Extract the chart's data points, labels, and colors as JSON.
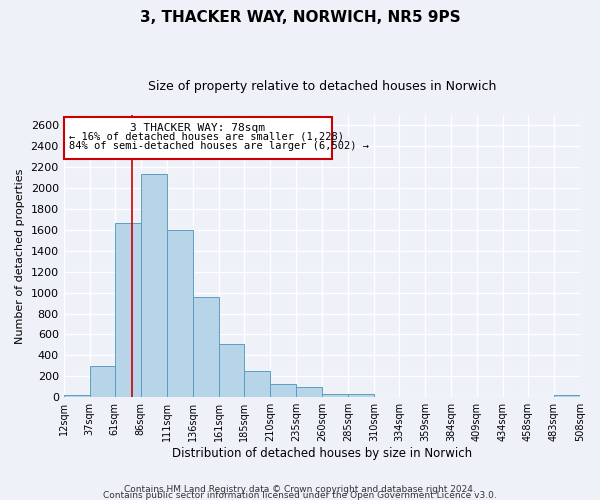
{
  "title_line1": "3, THACKER WAY, NORWICH, NR5 9PS",
  "title_line2": "Size of property relative to detached houses in Norwich",
  "xlabel": "Distribution of detached houses by size in Norwich",
  "ylabel": "Number of detached properties",
  "bar_edges": [
    12,
    37,
    61,
    86,
    111,
    136,
    161,
    185,
    210,
    235,
    260,
    285,
    310,
    334,
    359,
    384,
    409,
    434,
    458,
    483,
    508
  ],
  "bar_heights": [
    25,
    300,
    1670,
    2140,
    1600,
    960,
    505,
    250,
    130,
    100,
    30,
    30,
    5,
    5,
    5,
    5,
    5,
    5,
    5,
    25
  ],
  "bar_color": "#b8d4e8",
  "bar_edgecolor": "#5a9fc0",
  "tick_labels": [
    "12sqm",
    "37sqm",
    "61sqm",
    "86sqm",
    "111sqm",
    "136sqm",
    "161sqm",
    "185sqm",
    "210sqm",
    "235sqm",
    "260sqm",
    "285sqm",
    "310sqm",
    "334sqm",
    "359sqm",
    "384sqm",
    "409sqm",
    "434sqm",
    "458sqm",
    "483sqm",
    "508sqm"
  ],
  "ylim": [
    0,
    2700
  ],
  "yticks": [
    0,
    200,
    400,
    600,
    800,
    1000,
    1200,
    1400,
    1600,
    1800,
    2000,
    2200,
    2400,
    2600
  ],
  "vline_x": 78,
  "vline_color": "#cc0000",
  "annotation_title": "3 THACKER WAY: 78sqm",
  "annotation_line1": "← 16% of detached houses are smaller (1,228)",
  "annotation_line2": "84% of semi-detached houses are larger (6,502) →",
  "annotation_box_color": "#cc0000",
  "footer_line1": "Contains HM Land Registry data © Crown copyright and database right 2024.",
  "footer_line2": "Contains public sector information licensed under the Open Government Licence v3.0.",
  "background_color": "#eef2f8",
  "plot_bg_color": "#eef2f8",
  "grid_color": "#ffffff",
  "title_fontsize": 11,
  "subtitle_fontsize": 9,
  "ylabel_fontsize": 8,
  "xlabel_fontsize": 8.5,
  "tick_fontsize": 7,
  "ytick_fontsize": 8,
  "footer_fontsize": 6.5,
  "annot_title_fontsize": 8,
  "annot_text_fontsize": 7.5
}
